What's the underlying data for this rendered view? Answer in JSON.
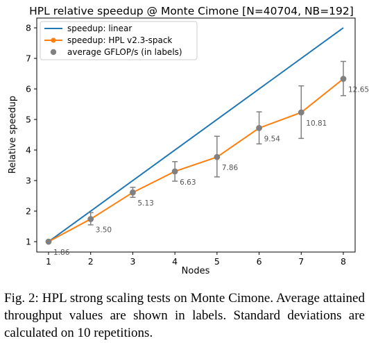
{
  "chart_data": {
    "type": "line",
    "title": "HPL relative speedup @ Monte Cimone [N=40704, NB=192]",
    "xlabel": "Nodes",
    "ylabel": "Relative speedup",
    "xlim": [
      0.72,
      8.28
    ],
    "ylim": [
      0.66,
      8.32
    ],
    "xticks": [
      "1",
      "2",
      "3",
      "4",
      "5",
      "6",
      "7",
      "8"
    ],
    "yticks": [
      "1",
      "2",
      "3",
      "4",
      "5",
      "6",
      "7",
      "8"
    ],
    "grid": false,
    "legend_position": "top-left",
    "series": [
      {
        "name": "speedup: linear",
        "color": "#1f77b4",
        "x": [
          1,
          8
        ],
        "y": [
          1,
          8
        ]
      },
      {
        "name": "speedup: HPL v2.3-spack",
        "color": "#ff7f0e",
        "x": [
          1,
          2,
          3,
          4,
          5,
          6,
          7,
          8
        ],
        "y": [
          1.0,
          1.74,
          2.61,
          3.3,
          3.77,
          4.72,
          5.23,
          6.33
        ]
      },
      {
        "name": "average GFLOP/s (in labels)",
        "color": "#808080",
        "x": [
          1,
          2,
          3,
          4,
          5,
          6,
          7,
          8
        ],
        "y": [
          1.0,
          1.74,
          2.61,
          3.3,
          3.77,
          4.72,
          5.23,
          6.33
        ],
        "error_low": [
          1.0,
          1.55,
          2.45,
          2.98,
          3.12,
          4.2,
          4.38,
          5.78
        ],
        "error_high": [
          1.0,
          1.95,
          2.78,
          3.62,
          4.45,
          5.25,
          6.1,
          6.9
        ],
        "labels": [
          "1.86",
          "3.50",
          "5.13",
          "6.63",
          "7.86",
          "9.54",
          "10.81",
          "12.65"
        ]
      }
    ]
  },
  "caption": "Fig. 2: HPL strong scaling tests on Monte Cimone. Average attained throughput values are shown in labels. Standard deviations are calculated on 10 repetitions."
}
